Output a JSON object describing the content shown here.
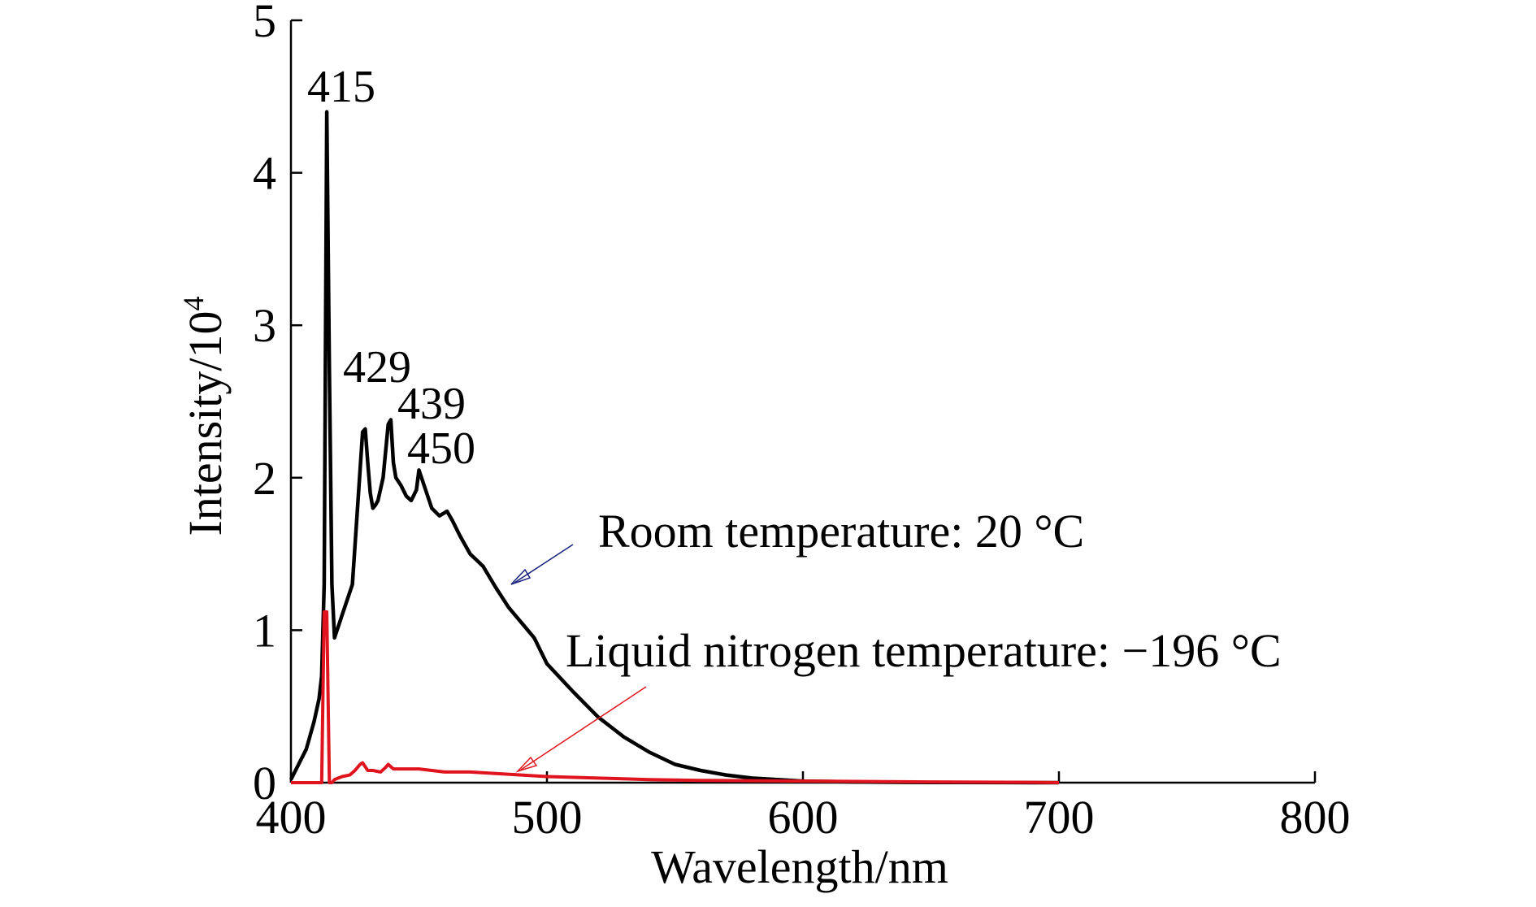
{
  "chart_data": {
    "type": "line",
    "title": "",
    "xlabel": "Wavelength/nm",
    "ylabel": "Intensity/10",
    "ylabel_superscript": "4",
    "xlim": [
      400,
      800
    ],
    "ylim": [
      0,
      5
    ],
    "x_ticks": [
      400,
      500,
      600,
      700,
      800
    ],
    "y_ticks": [
      0,
      1,
      2,
      3,
      4,
      5
    ],
    "x_tick_labels": [
      "400",
      "500",
      "600",
      "700",
      "800"
    ],
    "y_tick_labels": [
      "0",
      "1",
      "2",
      "3",
      "4",
      "5"
    ],
    "grid": false,
    "legend": "none",
    "series": [
      {
        "color": "#000000",
        "x": [
          400,
          403,
          406,
          409,
          411,
          412,
          413,
          414,
          415,
          416,
          417,
          418,
          419,
          420,
          422,
          424,
          426,
          428,
          429,
          430,
          431,
          432,
          433,
          434,
          436,
          438,
          439,
          440,
          441,
          443,
          445,
          447,
          449,
          450,
          452,
          455,
          458,
          461,
          463,
          466,
          470,
          475,
          480,
          485,
          490,
          495,
          500,
          510,
          520,
          530,
          540,
          550,
          560,
          570,
          580,
          590,
          600,
          620,
          640,
          660,
          680,
          700
        ],
        "y": [
          0.02,
          0.12,
          0.22,
          0.4,
          0.55,
          0.7,
          1.3,
          4.4,
          2.7,
          1.3,
          0.95,
          1.0,
          1.05,
          1.1,
          1.2,
          1.3,
          1.8,
          2.3,
          2.32,
          2.1,
          1.9,
          1.8,
          1.82,
          1.85,
          2.0,
          2.35,
          2.38,
          2.1,
          2.0,
          1.95,
          1.88,
          1.85,
          1.92,
          2.05,
          1.95,
          1.8,
          1.75,
          1.78,
          1.72,
          1.62,
          1.5,
          1.42,
          1.28,
          1.15,
          1.05,
          0.95,
          0.78,
          0.6,
          0.43,
          0.3,
          0.2,
          0.12,
          0.08,
          0.05,
          0.03,
          0.02,
          0.01,
          0.005,
          0.002,
          0.001,
          0.0005,
          0
        ]
      },
      {
        "color": "#e0141e",
        "x": [
          400,
          412,
          413,
          414,
          415,
          416,
          417,
          420,
          423,
          425,
          427,
          428,
          430,
          432,
          435,
          437,
          438,
          440,
          445,
          450,
          455,
          460,
          470,
          480,
          490,
          500,
          520,
          540,
          560,
          600,
          650,
          690,
          700
        ],
        "y": [
          0,
          0,
          1.12,
          1.12,
          0,
          0,
          0.02,
          0.04,
          0.05,
          0.08,
          0.12,
          0.13,
          0.08,
          0.08,
          0.07,
          0.1,
          0.12,
          0.09,
          0.09,
          0.09,
          0.08,
          0.07,
          0.07,
          0.06,
          0.05,
          0.04,
          0.03,
          0.02,
          0.015,
          0.01,
          0.005,
          0.002,
          0
        ]
      }
    ],
    "peak_labels": [
      {
        "text": "415",
        "x": 415,
        "y": 4.4
      },
      {
        "text": "429",
        "x": 428.5,
        "y": 2.33
      },
      {
        "text": "439",
        "x": 439,
        "y": 2.38
      },
      {
        "text": "450",
        "x": 451,
        "y": 2.06
      }
    ],
    "annotations": [
      {
        "text": "Room temperature: 20 °C",
        "color": "#1a237e"
      },
      {
        "text": "Liquid nitrogen temperature: −196 °C",
        "color": "#e0141e"
      }
    ]
  }
}
